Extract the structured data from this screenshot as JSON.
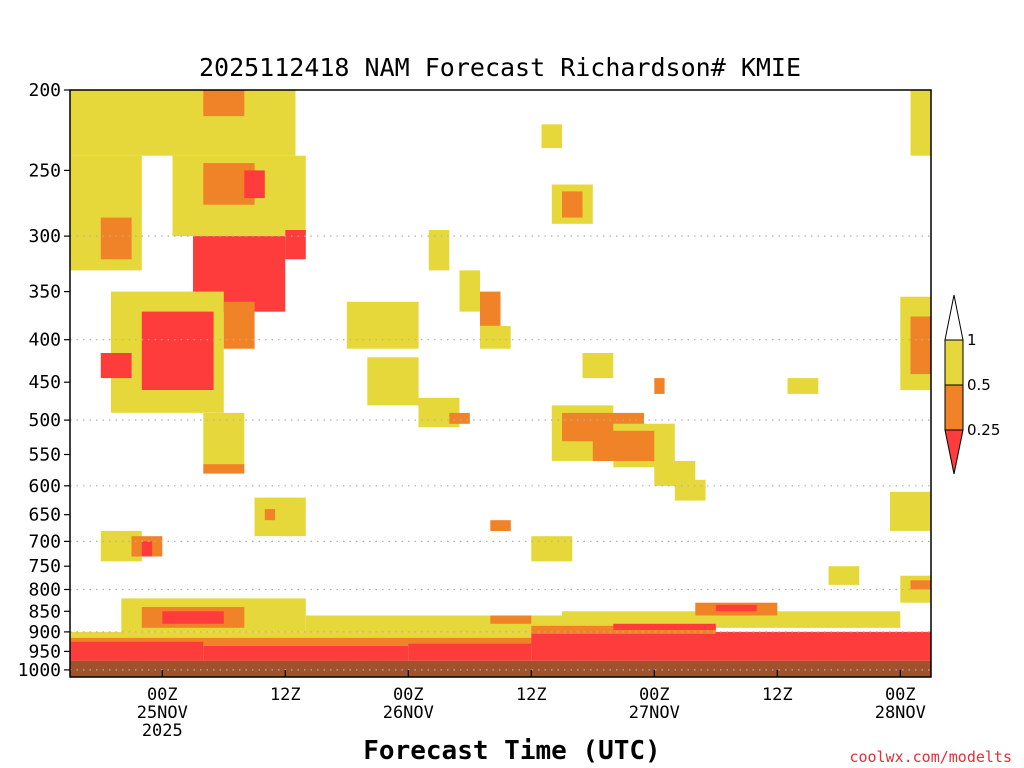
{
  "chart_data": {
    "type": "heatmap",
    "title": "2025112418 NAM Forecast Richardson# KMIE",
    "xlabel": "Forecast Time (UTC)",
    "ylabel": "",
    "credit": "coolwx.com/modelts",
    "y_axis": {
      "scale": "log",
      "range": [
        200,
        1000
      ],
      "ticks": [
        200,
        250,
        300,
        350,
        400,
        450,
        500,
        550,
        600,
        650,
        700,
        750,
        800,
        850,
        900,
        950,
        1000
      ],
      "tick_labels": [
        "200",
        "250",
        "300",
        "350",
        "400",
        "450",
        "500",
        "550",
        "600",
        "650",
        "700",
        "750",
        "800",
        "850",
        "900",
        "950",
        "1000"
      ],
      "gridlines": [
        300,
        400,
        500,
        600,
        700,
        800,
        900,
        1000
      ]
    },
    "x_axis": {
      "range_hours": [
        -3,
        81
      ],
      "ticks": [
        {
          "hour": 6,
          "label": "00Z",
          "line2": "25NOV",
          "line3": "2025"
        },
        {
          "hour": 18,
          "label": "12Z",
          "line2": "",
          "line3": ""
        },
        {
          "hour": 30,
          "label": "00Z",
          "line2": "26NOV",
          "line3": ""
        },
        {
          "hour": 42,
          "label": "12Z",
          "line2": "",
          "line3": ""
        },
        {
          "hour": 54,
          "label": "00Z",
          "line2": "27NOV",
          "line3": ""
        },
        {
          "hour": 66,
          "label": "12Z",
          "line2": "",
          "line3": ""
        },
        {
          "hour": 78,
          "label": "00Z",
          "line2": "28NOV",
          "line3": ""
        }
      ]
    },
    "legend": {
      "position": "right",
      "top_label": "1",
      "entries": [
        {
          "label": "0.5",
          "color": "#e6d83a",
          "range": "0.5 - 1"
        },
        {
          "label": "0.25",
          "color": "#f08228",
          "range": "0.25 - 0.5"
        },
        {
          "label": "",
          "color": "#ff3c3c",
          "range": "< 0.25"
        }
      ]
    },
    "colors": {
      "low": "#ff3c3c",
      "mid": "#f08228",
      "high": "#e6d83a",
      "ground": "#a0522d",
      "grid": "#b0b0b0"
    },
    "ground_pressure": 975,
    "regions": [
      {
        "cat": "high",
        "h0": -3,
        "h1": 19,
        "p0": 200,
        "p1": 240
      },
      {
        "cat": "mid",
        "h0": 10,
        "h1": 14,
        "p0": 200,
        "p1": 215
      },
      {
        "cat": "high",
        "h0": -3,
        "h1": 4,
        "p0": 240,
        "p1": 330
      },
      {
        "cat": "mid",
        "h0": 0,
        "h1": 3,
        "p0": 285,
        "p1": 320
      },
      {
        "cat": "high",
        "h0": 7,
        "h1": 20,
        "p0": 240,
        "p1": 300
      },
      {
        "cat": "mid",
        "h0": 10,
        "h1": 15,
        "p0": 245,
        "p1": 275
      },
      {
        "cat": "low",
        "h0": 14,
        "h1": 16,
        "p0": 250,
        "p1": 270
      },
      {
        "cat": "low",
        "h0": 9,
        "h1": 18,
        "p0": 300,
        "p1": 370
      },
      {
        "cat": "low",
        "h0": 18,
        "h1": 20,
        "p0": 295,
        "p1": 320
      },
      {
        "cat": "high",
        "h0": 1,
        "h1": 12,
        "p0": 350,
        "p1": 490
      },
      {
        "cat": "low",
        "h0": 4,
        "h1": 11,
        "p0": 370,
        "p1": 460
      },
      {
        "cat": "low",
        "h0": 0,
        "h1": 3,
        "p0": 415,
        "p1": 445
      },
      {
        "cat": "mid",
        "h0": 12,
        "h1": 15,
        "p0": 360,
        "p1": 410
      },
      {
        "cat": "high",
        "h0": 10,
        "h1": 14,
        "p0": 490,
        "p1": 570
      },
      {
        "cat": "mid",
        "h0": 10,
        "h1": 14,
        "p0": 565,
        "p1": 580
      },
      {
        "cat": "high",
        "h0": 24,
        "h1": 31,
        "p0": 360,
        "p1": 410
      },
      {
        "cat": "high",
        "h0": 26,
        "h1": 31,
        "p0": 420,
        "p1": 480
      },
      {
        "cat": "high",
        "h0": 31,
        "h1": 35,
        "p0": 470,
        "p1": 510
      },
      {
        "cat": "mid",
        "h0": 34,
        "h1": 36,
        "p0": 490,
        "p1": 505
      },
      {
        "cat": "high",
        "h0": 35,
        "h1": 37,
        "p0": 330,
        "p1": 370
      },
      {
        "cat": "mid",
        "h0": 37,
        "h1": 39,
        "p0": 350,
        "p1": 385
      },
      {
        "cat": "high",
        "h0": 37,
        "h1": 40,
        "p0": 385,
        "p1": 410
      },
      {
        "cat": "high",
        "h0": 32,
        "h1": 34,
        "p0": 295,
        "p1": 330
      },
      {
        "cat": "high",
        "h0": 44,
        "h1": 48,
        "p0": 260,
        "p1": 290
      },
      {
        "cat": "mid",
        "h0": 45,
        "h1": 47,
        "p0": 265,
        "p1": 285
      },
      {
        "cat": "high",
        "h0": 43,
        "h1": 45,
        "p0": 220,
        "p1": 235
      },
      {
        "cat": "high",
        "h0": 44,
        "h1": 50,
        "p0": 480,
        "p1": 560
      },
      {
        "cat": "mid",
        "h0": 45,
        "h1": 53,
        "p0": 490,
        "p1": 530
      },
      {
        "cat": "high",
        "h0": 50,
        "h1": 56,
        "p0": 505,
        "p1": 570
      },
      {
        "cat": "mid",
        "h0": 48,
        "h1": 54,
        "p0": 515,
        "p1": 560
      },
      {
        "cat": "high",
        "h0": 54,
        "h1": 58,
        "p0": 560,
        "p1": 600
      },
      {
        "cat": "high",
        "h0": 56,
        "h1": 59,
        "p0": 590,
        "p1": 625
      },
      {
        "cat": "high",
        "h0": 47,
        "h1": 50,
        "p0": 415,
        "p1": 445
      },
      {
        "cat": "mid",
        "h0": 54,
        "h1": 55,
        "p0": 445,
        "p1": 465
      },
      {
        "cat": "high",
        "h0": 67,
        "h1": 70,
        "p0": 445,
        "p1": 465
      },
      {
        "cat": "high",
        "h0": 79,
        "h1": 81,
        "p0": 200,
        "p1": 240
      },
      {
        "cat": "high",
        "h0": 78,
        "h1": 81,
        "p0": 355,
        "p1": 460
      },
      {
        "cat": "mid",
        "h0": 79,
        "h1": 81,
        "p0": 375,
        "p1": 440
      },
      {
        "cat": "high",
        "h0": 77,
        "h1": 81,
        "p0": 610,
        "p1": 680
      },
      {
        "cat": "high",
        "h0": 71,
        "h1": 74,
        "p0": 750,
        "p1": 790
      },
      {
        "cat": "high",
        "h0": 15,
        "h1": 20,
        "p0": 620,
        "p1": 690
      },
      {
        "cat": "mid",
        "h0": 16,
        "h1": 17,
        "p0": 640,
        "p1": 660
      },
      {
        "cat": "high",
        "h0": 0,
        "h1": 4,
        "p0": 680,
        "p1": 740
      },
      {
        "cat": "mid",
        "h0": 3,
        "h1": 6,
        "p0": 690,
        "p1": 730
      },
      {
        "cat": "low",
        "h0": 4,
        "h1": 5,
        "p0": 700,
        "p1": 730
      },
      {
        "cat": "high",
        "h0": 42,
        "h1": 46,
        "p0": 690,
        "p1": 740
      },
      {
        "cat": "mid",
        "h0": 38,
        "h1": 40,
        "p0": 660,
        "p1": 680
      },
      {
        "cat": "high",
        "h0": 2,
        "h1": 20,
        "p0": 820,
        "p1": 900
      },
      {
        "cat": "mid",
        "h0": 4,
        "h1": 14,
        "p0": 840,
        "p1": 890
      },
      {
        "cat": "low",
        "h0": 6,
        "h1": 12,
        "p0": 850,
        "p1": 880
      },
      {
        "cat": "high",
        "h0": 20,
        "h1": 45,
        "p0": 860,
        "p1": 905
      },
      {
        "cat": "mid",
        "h0": 38,
        "h1": 42,
        "p0": 860,
        "p1": 880
      },
      {
        "cat": "high",
        "h0": 45,
        "h1": 78,
        "p0": 850,
        "p1": 890
      },
      {
        "cat": "mid",
        "h0": 58,
        "h1": 66,
        "p0": 830,
        "p1": 860
      },
      {
        "cat": "low",
        "h0": 60,
        "h1": 64,
        "p0": 835,
        "p1": 850
      },
      {
        "cat": "high",
        "h0": 78,
        "h1": 81,
        "p0": 770,
        "p1": 830
      },
      {
        "cat": "mid",
        "h0": 79,
        "h1": 81,
        "p0": 780,
        "p1": 800
      },
      {
        "cat": "high",
        "h0": -3,
        "h1": 81,
        "p0": 900,
        "p1": 925
      },
      {
        "cat": "mid",
        "h0": -3,
        "h1": 81,
        "p0": 915,
        "p1": 935
      },
      {
        "cat": "low",
        "h0": -3,
        "h1": 10,
        "p0": 925,
        "p1": 975
      },
      {
        "cat": "low",
        "h0": 10,
        "h1": 30,
        "p0": 935,
        "p1": 975
      },
      {
        "cat": "low",
        "h0": 30,
        "h1": 42,
        "p0": 930,
        "p1": 975
      },
      {
        "cat": "low",
        "h0": 42,
        "h1": 81,
        "p0": 900,
        "p1": 975
      },
      {
        "cat": "mid",
        "h0": 42,
        "h1": 60,
        "p0": 885,
        "p1": 905
      },
      {
        "cat": "low",
        "h0": 50,
        "h1": 60,
        "p0": 880,
        "p1": 895
      }
    ]
  }
}
